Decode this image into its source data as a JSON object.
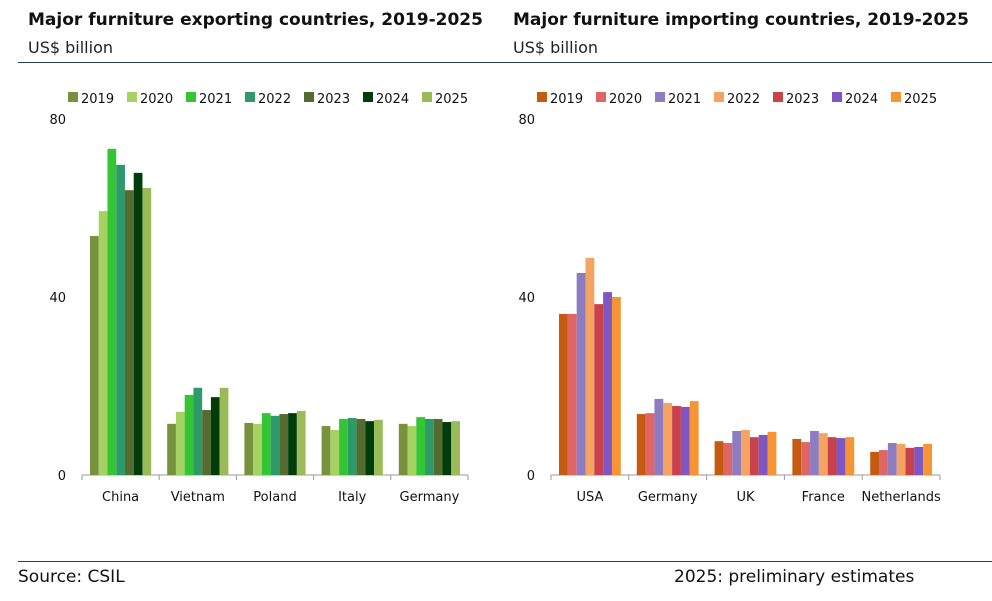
{
  "footer": {
    "source": "Source: CSIL",
    "note": "2025: preliminary estimates"
  },
  "chart_data": [
    {
      "type": "bar",
      "title": "Major furniture exporting countries, 2019-2025",
      "subtitle": "US$ billion",
      "categories": [
        "China",
        "Vietnam",
        "Poland",
        "Italy",
        "Germany"
      ],
      "ylim": [
        0,
        80
      ],
      "yticks": [
        0,
        40,
        80
      ],
      "grid": false,
      "legend": "top",
      "series": [
        {
          "name": "2019",
          "color": "#77923c",
          "values": [
            53.7,
            11.5,
            11.7,
            11.0,
            11.5
          ]
        },
        {
          "name": "2020",
          "color": "#a6d263",
          "values": [
            59.3,
            14.2,
            11.5,
            10.1,
            11.0
          ]
        },
        {
          "name": "2021",
          "color": "#33c533",
          "values": [
            73.3,
            18.0,
            13.9,
            12.6,
            13.0
          ]
        },
        {
          "name": "2022",
          "color": "#2e9a6a",
          "values": [
            69.7,
            19.6,
            13.3,
            12.8,
            12.6
          ]
        },
        {
          "name": "2023",
          "color": "#556b2f",
          "values": [
            64.0,
            14.6,
            13.7,
            12.6,
            12.6
          ]
        },
        {
          "name": "2024",
          "color": "#013d0b",
          "values": [
            67.9,
            17.5,
            13.9,
            12.1,
            11.9
          ]
        },
        {
          "name": "2025",
          "color": "#9bbb59",
          "values": [
            64.5,
            19.6,
            14.4,
            12.4,
            12.1
          ]
        }
      ]
    },
    {
      "type": "bar",
      "title": "Major furniture importing countries, 2019-2025",
      "subtitle": "US$ billion",
      "categories": [
        "USA",
        "Germany",
        "UK",
        "France",
        "Netherlands"
      ],
      "ylim": [
        0,
        80
      ],
      "yticks": [
        0,
        40,
        80
      ],
      "grid": false,
      "legend": "top",
      "series": [
        {
          "name": "2019",
          "color": "#c55a11",
          "values": [
            36.2,
            13.7,
            7.6,
            8.1,
            5.2
          ]
        },
        {
          "name": "2020",
          "color": "#e06666",
          "values": [
            36.2,
            13.9,
            7.2,
            7.4,
            5.6
          ]
        },
        {
          "name": "2021",
          "color": "#8e7cc3",
          "values": [
            45.4,
            17.1,
            9.9,
            9.9,
            7.2
          ]
        },
        {
          "name": "2022",
          "color": "#f4a460",
          "values": [
            48.8,
            16.2,
            10.1,
            9.4,
            7.0
          ]
        },
        {
          "name": "2023",
          "color": "#c9414a",
          "values": [
            38.4,
            15.5,
            8.5,
            8.5,
            6.1
          ]
        },
        {
          "name": "2024",
          "color": "#7e57c2",
          "values": [
            41.1,
            15.3,
            9.0,
            8.3,
            6.3
          ]
        },
        {
          "name": "2025",
          "color": "#f79433",
          "values": [
            40.0,
            16.6,
            9.7,
            8.5,
            7.0
          ]
        }
      ]
    }
  ]
}
